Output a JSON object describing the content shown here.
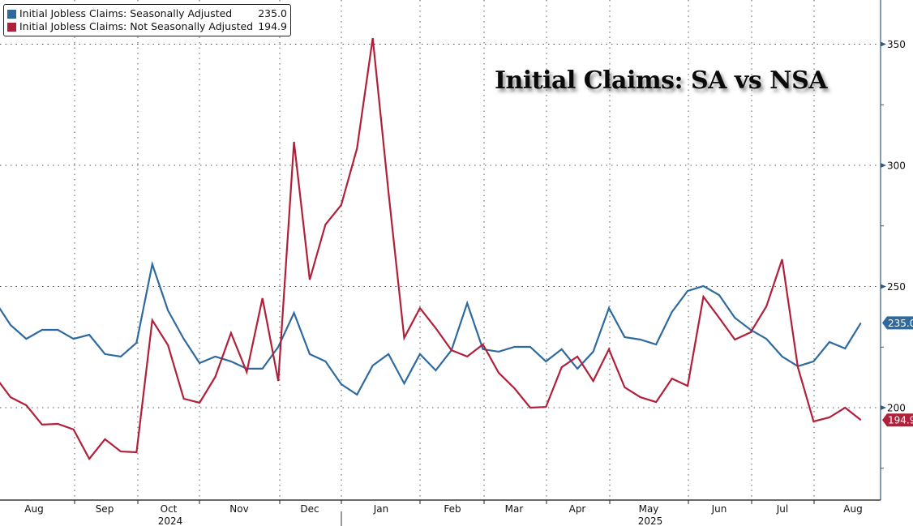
{
  "legend": {
    "items": [
      {
        "label": "Initial Jobless Claims: Seasonally Adjusted",
        "value": "235.0",
        "color": "#2f6a9e"
      },
      {
        "label": "Initial Jobless Claims: Not Seasonally Adjusted",
        "value": "194.9",
        "color": "#b0203a"
      }
    ]
  },
  "chart_data": {
    "type": "line",
    "title": "Initial Claims: SA vs NSA",
    "xlabel": "",
    "ylabel": "",
    "ylim": [
      165,
      372
    ],
    "y_ticks": [
      200,
      250,
      300,
      350
    ],
    "y_minor_ticks": [
      175,
      225,
      275,
      325
    ],
    "grid": true,
    "legend_position": "top-left",
    "x_month_labels": [
      "Aug",
      "Sep",
      "Oct",
      "Nov",
      "Dec",
      "Jan",
      "Feb",
      "Mar",
      "Apr",
      "May",
      "Jun",
      "Jul",
      "Aug"
    ],
    "x_year_labels": [
      {
        "label": "2024",
        "under_month": "Oct"
      },
      {
        "label": "2025",
        "under_month": "May"
      }
    ],
    "x_frequency": "weekly",
    "series": [
      {
        "name": "Initial Jobless Claims: Seasonally Adjusted",
        "color": "#2f6a9e",
        "last_value_tag": "235.0",
        "values": [
          244.0,
          234.1,
          228.4,
          232.1,
          232.1,
          228.4,
          230.1,
          222.1,
          221.1,
          226.8,
          259.2,
          240.1,
          228.4,
          218.4,
          221.1,
          219.1,
          216.1,
          216.1,
          225.1,
          239.1,
          222.1,
          219.1,
          209.7,
          205.4,
          217.4,
          222.1,
          210.0,
          222.1,
          215.4,
          223.7,
          243.1,
          224.1,
          223.1,
          225.1,
          225.1,
          219.1,
          224.1,
          216.1,
          223.1,
          241.1,
          229.1,
          228.1,
          226.1,
          239.5,
          248.2,
          250.2,
          246.5,
          237.1,
          232.1,
          228.4,
          221.1,
          217.1,
          219.1,
          227.1,
          224.4,
          235.0
        ]
      },
      {
        "name": "Initial Jobless Claims: Not Seasonally Adjusted",
        "color": "#b0203a",
        "last_value_tag": "194.9",
        "values": [
          213.0,
          204.3,
          201.0,
          193.0,
          193.3,
          191.0,
          178.9,
          187.0,
          181.9,
          181.6,
          236.1,
          225.8,
          203.7,
          202.0,
          212.7,
          230.8,
          214.7,
          245.2,
          211.0,
          309.7,
          252.8,
          275.6,
          283.6,
          307.0,
          352.5,
          289.0,
          228.8,
          241.1,
          232.8,
          223.7,
          221.1,
          226.1,
          214.4,
          208.0,
          200.0,
          200.3,
          216.7,
          221.1,
          211.0,
          224.1,
          208.4,
          204.3,
          202.3,
          212.0,
          209.0,
          245.8,
          237.1,
          228.1,
          231.1,
          241.8,
          261.2,
          216.7,
          194.3,
          196.0,
          200.0,
          194.9
        ]
      }
    ]
  }
}
